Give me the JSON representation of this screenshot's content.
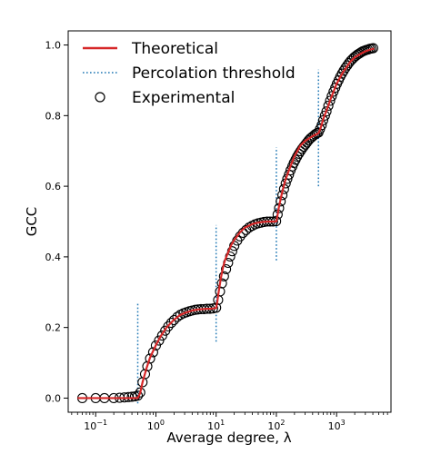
{
  "chart_data": {
    "type": "line",
    "xlabel": "Average degree, λ",
    "ylabel": "GCC",
    "xscale": "log",
    "xlim": [
      0.035,
      8000
    ],
    "ylim": [
      -0.04,
      1.04
    ],
    "xticks": [
      {
        "value": 0.1,
        "base": "10",
        "exp": "−1"
      },
      {
        "value": 1,
        "base": "10",
        "exp": "0"
      },
      {
        "value": 10,
        "base": "10",
        "exp": "1"
      },
      {
        "value": 100,
        "base": "10",
        "exp": "2"
      },
      {
        "value": 1000,
        "base": "10",
        "exp": "3"
      }
    ],
    "yticks": [
      "0.0",
      "0.2",
      "0.4",
      "0.6",
      "0.8",
      "1.0"
    ],
    "grid": false,
    "legend_position": "top-left",
    "series": [
      {
        "name": "Theoretical",
        "style": "solid-line",
        "color": "#d62728",
        "x": [
          0.05,
          0.1,
          0.2,
          0.3,
          0.4,
          0.5,
          0.55,
          0.6,
          0.7,
          0.8,
          1,
          1.2,
          1.5,
          2,
          2.5,
          3,
          4,
          5,
          6,
          7,
          8,
          9,
          10,
          10.5,
          11,
          12,
          13,
          14,
          16,
          18,
          20,
          25,
          30,
          40,
          50,
          60,
          70,
          80,
          90,
          100,
          105,
          110,
          120,
          130,
          140,
          150,
          170,
          200,
          250,
          300,
          400,
          500,
          530,
          560,
          600,
          700,
          800,
          1000,
          1300,
          1700,
          2000,
          2500,
          3000,
          3500,
          4200
        ],
        "values": [
          0,
          0,
          0,
          0,
          0,
          0,
          0.015,
          0.045,
          0.085,
          0.115,
          0.15,
          0.175,
          0.2,
          0.222,
          0.235,
          0.241,
          0.248,
          0.251,
          0.252,
          0.253,
          0.253,
          0.254,
          0.255,
          0.275,
          0.3,
          0.34,
          0.37,
          0.39,
          0.415,
          0.435,
          0.448,
          0.47,
          0.483,
          0.493,
          0.497,
          0.499,
          0.5,
          0.5,
          0.5,
          0.5,
          0.52,
          0.54,
          0.57,
          0.595,
          0.615,
          0.63,
          0.655,
          0.685,
          0.715,
          0.728,
          0.742,
          0.75,
          0.76,
          0.772,
          0.79,
          0.82,
          0.848,
          0.89,
          0.925,
          0.953,
          0.965,
          0.975,
          0.982,
          0.986,
          0.99
        ]
      },
      {
        "name": "Percolation threshold",
        "style": "dotted-vertical",
        "color": "#1f77b4",
        "segments": [
          {
            "x": 0.5,
            "y0": -0.015,
            "y1": 0.27
          },
          {
            "x": 10,
            "y0": 0.16,
            "y1": 0.49
          },
          {
            "x": 100,
            "y0": 0.39,
            "y1": 0.71
          },
          {
            "x": 500,
            "y0": 0.6,
            "y1": 0.93
          }
        ]
      },
      {
        "name": "Experimental",
        "style": "open-circles",
        "color": "#000000",
        "x": [
          0.06,
          0.1,
          0.14,
          0.2,
          0.25,
          0.3,
          0.35,
          0.4,
          0.45,
          0.5,
          0.55,
          0.6,
          0.66,
          0.72,
          0.8,
          0.9,
          1,
          1.13,
          1.27,
          1.43,
          1.6,
          1.8,
          2,
          2.27,
          2.55,
          2.87,
          3.2,
          3.6,
          4,
          4.5,
          5,
          5.6,
          6.3,
          7,
          7.9,
          8.9,
          10,
          10.8,
          11.6,
          12.5,
          13.5,
          14.6,
          15.8,
          17.1,
          18.5,
          20,
          22.4,
          25,
          28,
          31.5,
          35.3,
          39.6,
          44.4,
          49.8,
          55.8,
          62.6,
          70.2,
          78.7,
          88.3,
          99,
          105,
          111,
          118,
          126,
          134,
          143,
          152,
          162,
          172,
          184,
          195,
          208,
          221,
          236,
          251,
          267,
          284,
          303,
          322,
          343,
          365,
          389,
          414,
          441,
          469,
          500,
          530,
          565,
          600,
          640,
          680,
          730,
          780,
          830,
          890,
          950,
          1010,
          1080,
          1150,
          1230,
          1310,
          1400,
          1500,
          1600,
          1710,
          1830,
          1950,
          2090,
          2230,
          2380,
          2540,
          2710,
          2900,
          3100,
          3310,
          3540,
          3780,
          4050
        ],
        "values": [
          0,
          0,
          0,
          0,
          0.001,
          0.002,
          0.003,
          0.004,
          0.005,
          0.007,
          0.016,
          0.045,
          0.068,
          0.09,
          0.112,
          0.13,
          0.149,
          0.163,
          0.177,
          0.191,
          0.203,
          0.213,
          0.221,
          0.23,
          0.236,
          0.24,
          0.243,
          0.246,
          0.248,
          0.25,
          0.251,
          0.252,
          0.252,
          0.253,
          0.253,
          0.254,
          0.256,
          0.278,
          0.302,
          0.325,
          0.345,
          0.365,
          0.383,
          0.401,
          0.416,
          0.431,
          0.446,
          0.458,
          0.468,
          0.476,
          0.483,
          0.488,
          0.492,
          0.495,
          0.497,
          0.499,
          0.5,
          0.5,
          0.5,
          0.501,
          0.52,
          0.538,
          0.557,
          0.575,
          0.592,
          0.608,
          0.621,
          0.633,
          0.645,
          0.656,
          0.666,
          0.675,
          0.684,
          0.692,
          0.699,
          0.706,
          0.712,
          0.718,
          0.724,
          0.73,
          0.735,
          0.739,
          0.743,
          0.747,
          0.75,
          0.752,
          0.762,
          0.773,
          0.787,
          0.8,
          0.812,
          0.828,
          0.842,
          0.855,
          0.868,
          0.879,
          0.89,
          0.9,
          0.91,
          0.919,
          0.927,
          0.935,
          0.942,
          0.949,
          0.955,
          0.96,
          0.965,
          0.969,
          0.973,
          0.976,
          0.979,
          0.982,
          0.984,
          0.986,
          0.987,
          0.989,
          0.99,
          0.991
        ]
      }
    ]
  }
}
